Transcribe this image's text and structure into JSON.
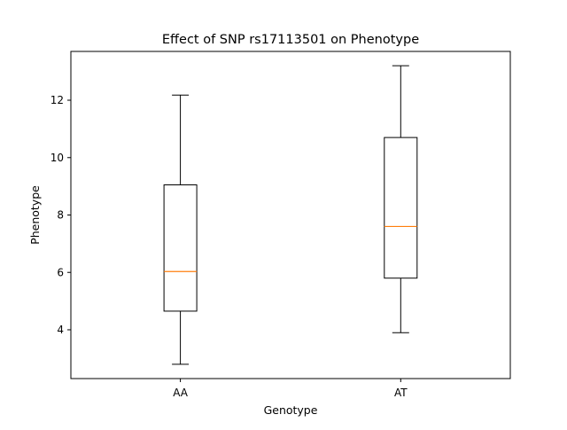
{
  "chart_data": {
    "type": "box",
    "title": "Effect of SNP rs17113501 on Phenotype",
    "xlabel": "Genotype",
    "ylabel": "Phenotype",
    "categories": [
      "AA",
      "AT"
    ],
    "boxes": [
      {
        "category": "AA",
        "whisker_low": 2.8,
        "q1": 4.65,
        "median": 6.03,
        "q3": 9.05,
        "whisker_high": 12.18
      },
      {
        "category": "AT",
        "whisker_low": 3.9,
        "q1": 5.8,
        "median": 7.6,
        "q3": 10.7,
        "whisker_high": 13.2
      }
    ],
    "ylim": [
      2.3,
      13.7
    ],
    "yticks": [
      4,
      6,
      8,
      10,
      12
    ],
    "grid": false,
    "colors": {
      "box": "#000000",
      "median": "#ff7f0e",
      "background": "#ffffff"
    }
  }
}
